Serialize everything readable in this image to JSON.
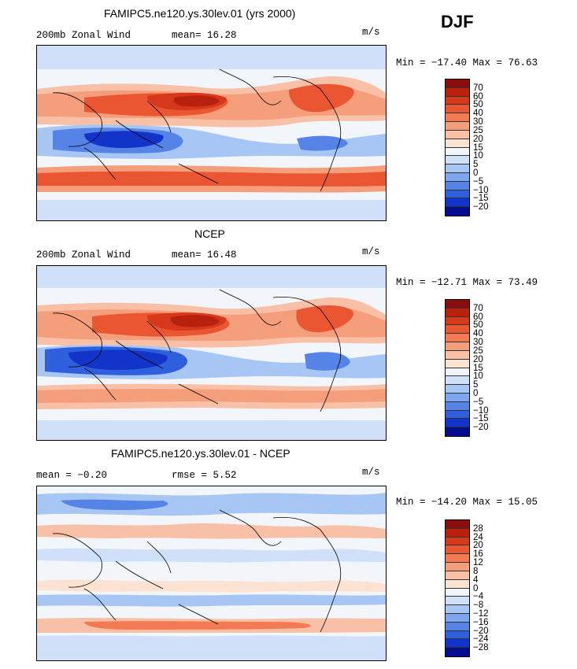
{
  "season": "DJF",
  "panels": [
    {
      "title": "FAMIPC5.ne120.ys.30lev.01 (yrs 2000)",
      "left_label": "200mb Zonal Wind",
      "stat1": "mean=  16.28",
      "stat2": "",
      "units": "m/s",
      "minmax": "Min = −17.40 Max =  76.63",
      "colorbar": {
        "labels": [
          "70",
          "60",
          "50",
          "40",
          "30",
          "25",
          "20",
          "15",
          "10",
          "5",
          "0",
          "−5",
          "−10",
          "−15",
          "−20"
        ],
        "colors": [
          "#8b0d0d",
          "#b8210e",
          "#d6381c",
          "#ea5532",
          "#f27b55",
          "#f59e7c",
          "#f8c0a6",
          "#fce2d3",
          "#f2f6fb",
          "#cfe0f8",
          "#a8c6f4",
          "#7ea6ef",
          "#5584e6",
          "#2f5fdc",
          "#1234c8",
          "#050d8e"
        ]
      }
    },
    {
      "title": "NCEP",
      "left_label": "200mb Zonal Wind",
      "stat1": "mean=  16.48",
      "stat2": "",
      "units": "m/s",
      "minmax": "Min = −12.71 Max =  73.49",
      "colorbar": {
        "labels": [
          "70",
          "60",
          "50",
          "40",
          "30",
          "25",
          "20",
          "15",
          "10",
          "5",
          "0",
          "−5",
          "−10",
          "−15",
          "−20"
        ],
        "colors": [
          "#8b0d0d",
          "#b8210e",
          "#d6381c",
          "#ea5532",
          "#f27b55",
          "#f59e7c",
          "#f8c0a6",
          "#fce2d3",
          "#f2f6fb",
          "#cfe0f8",
          "#a8c6f4",
          "#7ea6ef",
          "#5584e6",
          "#2f5fdc",
          "#1234c8",
          "#050d8e"
        ]
      }
    },
    {
      "title": "FAMIPC5.ne120.ys.30lev.01 - NCEP",
      "left_label": "mean =  −0.20",
      "stat1": "rmse =   5.52",
      "stat2": "",
      "units": "m/s",
      "minmax": "Min = −14.20 Max =  15.05",
      "colorbar": {
        "labels": [
          "28",
          "24",
          "20",
          "16",
          "12",
          "8",
          "4",
          "0",
          "−4",
          "−8",
          "−12",
          "−16",
          "−20",
          "−24",
          "−28"
        ],
        "colors": [
          "#8b0d0d",
          "#b8210e",
          "#d6381c",
          "#ea5532",
          "#f27b55",
          "#f59e7c",
          "#f8c0a6",
          "#fce2d3",
          "#f2f6fb",
          "#cfe0f8",
          "#a8c6f4",
          "#7ea6ef",
          "#5584e6",
          "#2f5fdc",
          "#1234c8",
          "#050d8e"
        ]
      }
    }
  ]
}
